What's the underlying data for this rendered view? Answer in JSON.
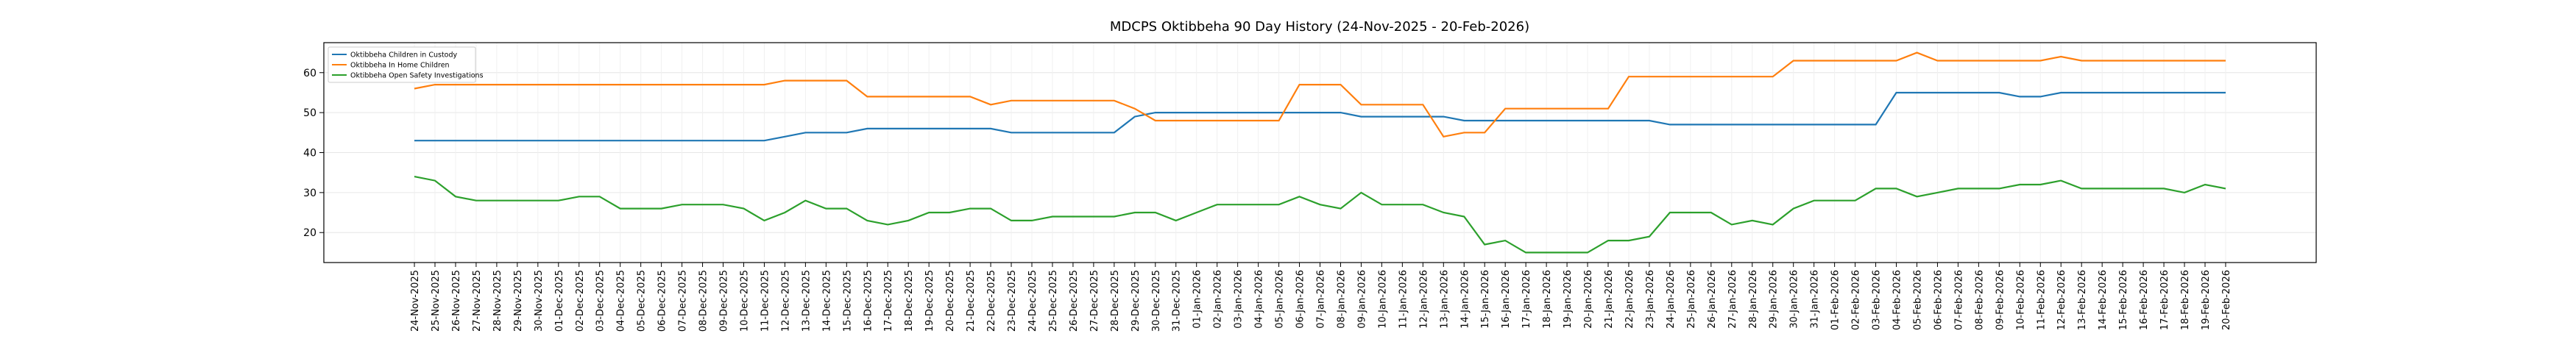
{
  "chart_data": {
    "type": "line",
    "title": "MDCPS Oktibbeha 90 Day History (24-Nov-2025 - 20-Feb-2026)",
    "categories": [
      "24-Nov-2025",
      "25-Nov-2025",
      "26-Nov-2025",
      "27-Nov-2025",
      "28-Nov-2025",
      "29-Nov-2025",
      "30-Nov-2025",
      "01-Dec-2025",
      "02-Dec-2025",
      "03-Dec-2025",
      "04-Dec-2025",
      "05-Dec-2025",
      "06-Dec-2025",
      "07-Dec-2025",
      "08-Dec-2025",
      "09-Dec-2025",
      "10-Dec-2025",
      "11-Dec-2025",
      "12-Dec-2025",
      "13-Dec-2025",
      "14-Dec-2025",
      "15-Dec-2025",
      "16-Dec-2025",
      "17-Dec-2025",
      "18-Dec-2025",
      "19-Dec-2025",
      "20-Dec-2025",
      "21-Dec-2025",
      "22-Dec-2025",
      "23-Dec-2025",
      "24-Dec-2025",
      "25-Dec-2025",
      "26-Dec-2025",
      "27-Dec-2025",
      "28-Dec-2025",
      "29-Dec-2025",
      "30-Dec-2025",
      "31-Dec-2025",
      "01-Jan-2026",
      "02-Jan-2026",
      "03-Jan-2026",
      "04-Jan-2026",
      "05-Jan-2026",
      "06-Jan-2026",
      "07-Jan-2026",
      "08-Jan-2026",
      "09-Jan-2026",
      "10-Jan-2026",
      "11-Jan-2026",
      "12-Jan-2026",
      "13-Jan-2026",
      "14-Jan-2026",
      "15-Jan-2026",
      "16-Jan-2026",
      "17-Jan-2026",
      "18-Jan-2026",
      "19-Jan-2026",
      "20-Jan-2026",
      "21-Jan-2026",
      "22-Jan-2026",
      "23-Jan-2026",
      "24-Jan-2026",
      "25-Jan-2026",
      "26-Jan-2026",
      "27-Jan-2026",
      "28-Jan-2026",
      "29-Jan-2026",
      "30-Jan-2026",
      "31-Jan-2026",
      "01-Feb-2026",
      "02-Feb-2026",
      "03-Feb-2026",
      "04-Feb-2026",
      "05-Feb-2026",
      "06-Feb-2026",
      "07-Feb-2026",
      "08-Feb-2026",
      "09-Feb-2026",
      "10-Feb-2026",
      "11-Feb-2026",
      "12-Feb-2026",
      "13-Feb-2026",
      "14-Feb-2026",
      "15-Feb-2026",
      "16-Feb-2026",
      "17-Feb-2026",
      "18-Feb-2026",
      "19-Feb-2026",
      "20-Feb-2026"
    ],
    "series": [
      {
        "name": "Oktibbeha Children in Custody",
        "color": "#1f77b4",
        "values": [
          43,
          43,
          43,
          43,
          43,
          43,
          43,
          43,
          43,
          43,
          43,
          43,
          43,
          43,
          43,
          43,
          43,
          43,
          44,
          45,
          45,
          45,
          46,
          46,
          46,
          46,
          46,
          46,
          46,
          45,
          45,
          45,
          45,
          45,
          45,
          49,
          50,
          50,
          50,
          50,
          50,
          50,
          50,
          50,
          50,
          50,
          49,
          49,
          49,
          49,
          49,
          48,
          48,
          48,
          48,
          48,
          48,
          48,
          48,
          48,
          48,
          47,
          47,
          47,
          47,
          47,
          47,
          47,
          47,
          47,
          47,
          47,
          55,
          55,
          55,
          55,
          55,
          55,
          54,
          54,
          55,
          55,
          55,
          55,
          55,
          55,
          55,
          55,
          55
        ]
      },
      {
        "name": "Oktibbeha In Home Children",
        "color": "#ff7f0e",
        "values": [
          56,
          57,
          57,
          57,
          57,
          57,
          57,
          57,
          57,
          57,
          57,
          57,
          57,
          57,
          57,
          57,
          57,
          57,
          58,
          58,
          58,
          58,
          54,
          54,
          54,
          54,
          54,
          54,
          52,
          53,
          53,
          53,
          53,
          53,
          53,
          51,
          48,
          48,
          48,
          48,
          48,
          48,
          48,
          57,
          57,
          57,
          52,
          52,
          52,
          52,
          44,
          45,
          45,
          51,
          51,
          51,
          51,
          51,
          51,
          59,
          59,
          59,
          59,
          59,
          59,
          59,
          59,
          63,
          63,
          63,
          63,
          63,
          63,
          65,
          63,
          63,
          63,
          63,
          63,
          63,
          64,
          63,
          63,
          63,
          63,
          63,
          63,
          63,
          63
        ]
      },
      {
        "name": "Oktibbeha Open Safety Investigations",
        "color": "#2ca02c",
        "values": [
          34,
          33,
          29,
          28,
          28,
          28,
          28,
          28,
          29,
          29,
          26,
          26,
          26,
          27,
          27,
          27,
          26,
          23,
          25,
          28,
          26,
          26,
          23,
          22,
          23,
          25,
          25,
          26,
          26,
          23,
          23,
          24,
          24,
          24,
          24,
          25,
          25,
          23,
          25,
          27,
          27,
          27,
          27,
          29,
          27,
          26,
          30,
          27,
          27,
          27,
          25,
          24,
          17,
          18,
          15,
          15,
          15,
          15,
          18,
          18,
          19,
          25,
          25,
          25,
          22,
          23,
          22,
          26,
          28,
          28,
          28,
          31,
          31,
          29,
          30,
          31,
          31,
          31,
          32,
          32,
          33,
          31,
          31,
          31,
          31,
          31,
          30,
          32,
          31
        ]
      }
    ],
    "ylim": [
      12.5,
      67.5
    ],
    "yticks": [
      20,
      30,
      40,
      50,
      60
    ],
    "grid": true,
    "legend": "upper left"
  }
}
